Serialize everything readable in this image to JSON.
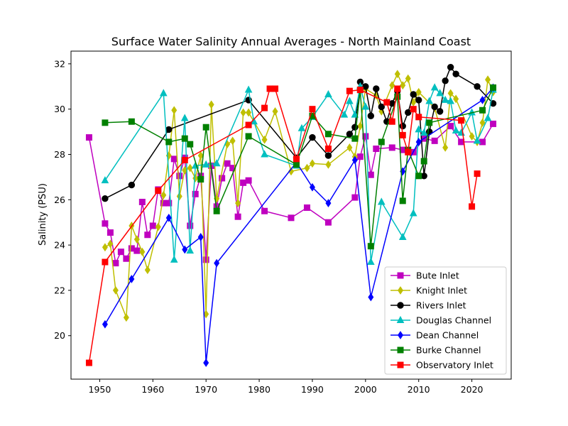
{
  "chart_data": {
    "type": "line",
    "title": "Surface Water Salinity Annual Averages - North Mainland Coast",
    "xlabel": "",
    "ylabel": "Salinity (PSU)",
    "xlim": [
      1944.6,
      2027.4
    ],
    "ylim": [
      18.08,
      32.56
    ],
    "xticks": [
      1950,
      1960,
      1970,
      1980,
      1990,
      2000,
      2010,
      2020
    ],
    "yticks": [
      20,
      22,
      24,
      26,
      28,
      30,
      32
    ],
    "grid": false,
    "legend_position": "lower right",
    "series": [
      {
        "name": "Bute Inlet",
        "color": "#bf00bf",
        "marker": "square",
        "x": [
          1948,
          1951,
          1952,
          1953,
          1954,
          1955,
          1956,
          1957,
          1958,
          1959,
          1960,
          1961,
          1962,
          1963,
          1964,
          1965,
          1966,
          1967,
          1968,
          1969,
          1970,
          1971,
          1972,
          1973,
          1974,
          1975,
          1976,
          1977,
          1978,
          1981,
          1986,
          1989,
          1993,
          1998,
          1999,
          2000,
          2001,
          2002,
          2005,
          2007,
          2009,
          2011,
          2013,
          2016,
          2018,
          2022,
          2024
        ],
        "y": [
          28.75,
          24.95,
          24.55,
          23.2,
          23.7,
          23.4,
          23.85,
          23.75,
          25.9,
          24.45,
          24.85,
          26.45,
          25.85,
          25.85,
          27.8,
          27.05,
          27.85,
          24.85,
          26.25,
          27.05,
          23.35,
          27.5,
          25.7,
          26.95,
          27.6,
          27.4,
          25.25,
          26.75,
          26.85,
          25.5,
          25.2,
          25.65,
          25.0,
          26.1,
          27.9,
          28.8,
          27.1,
          28.25,
          28.3,
          28.2,
          28.1,
          28.7,
          28.6,
          29.25,
          28.55,
          28.55,
          29.35
        ]
      },
      {
        "name": "Knight Inlet",
        "color": "#bfbf00",
        "marker": "diamond",
        "x": [
          1951,
          1952,
          1953,
          1955,
          1956,
          1957,
          1958,
          1959,
          1961,
          1962,
          1963,
          1964,
          1965,
          1966,
          1967,
          1968,
          1969,
          1970,
          1971,
          1972,
          1974,
          1975,
          1976,
          1977,
          1978,
          1981,
          1983,
          1986,
          1989,
          1990,
          1993,
          1997,
          1998,
          1999,
          2000,
          2002,
          2003,
          2005,
          2006,
          2007,
          2008,
          2009,
          2010,
          2013,
          2015,
          2016,
          2017,
          2020,
          2021,
          2022,
          2023,
          2024
        ],
        "y": [
          23.9,
          24.05,
          22.0,
          20.8,
          24.85,
          24.25,
          23.7,
          22.9,
          24.8,
          26.2,
          27.95,
          29.95,
          26.15,
          27.3,
          27.4,
          26.95,
          27.95,
          20.95,
          30.2,
          26.05,
          28.45,
          28.6,
          25.85,
          29.85,
          29.85,
          28.65,
          29.9,
          27.25,
          27.4,
          27.6,
          27.55,
          28.3,
          27.9,
          29.25,
          30.9,
          30.6,
          29.9,
          31.05,
          31.55,
          31.05,
          31.35,
          30.3,
          30.75,
          30.05,
          28.3,
          30.7,
          30.45,
          28.8,
          28.55,
          29.4,
          31.3,
          30.75
        ]
      },
      {
        "name": "Rivers Inlet",
        "color": "#000000",
        "marker": "circle",
        "x": [
          1951,
          1956,
          1963,
          1978,
          1987,
          1990,
          1993,
          1997,
          1998,
          1999,
          2000,
          2001,
          2002,
          2003,
          2004,
          2005,
          2006,
          2007,
          2008,
          2009,
          2010,
          2011,
          2012,
          2013,
          2014,
          2015,
          2016,
          2017,
          2021,
          2024
        ],
        "y": [
          26.05,
          26.65,
          29.1,
          30.4,
          27.85,
          28.75,
          27.95,
          28.9,
          29.2,
          31.2,
          31.0,
          29.7,
          30.9,
          30.1,
          29.45,
          30.25,
          30.8,
          29.25,
          29.85,
          30.65,
          30.4,
          27.05,
          29.0,
          30.1,
          29.9,
          31.25,
          31.85,
          31.55,
          31.0,
          30.25
        ]
      },
      {
        "name": "Douglas Channel",
        "color": "#00bfbf",
        "marker": "triangle",
        "x": [
          1951,
          1962,
          1964,
          1966,
          1967,
          1968,
          1970,
          1972,
          1978,
          1979,
          1981,
          1987,
          1988,
          1990,
          1993,
          1996,
          1997,
          1998,
          1999,
          2000,
          2001,
          2003,
          2007,
          2009,
          2010,
          2011,
          2012,
          2013,
          2014,
          2015,
          2016,
          2017,
          2018,
          2020,
          2021,
          2023,
          2024
        ],
        "y": [
          26.85,
          30.7,
          23.35,
          29.6,
          23.75,
          27.5,
          27.55,
          27.6,
          30.85,
          29.45,
          28.0,
          27.5,
          29.15,
          29.65,
          30.65,
          29.75,
          30.35,
          29.75,
          31.0,
          30.1,
          23.25,
          25.9,
          24.35,
          25.4,
          29.1,
          28.95,
          30.35,
          30.95,
          30.7,
          30.4,
          30.35,
          29.05,
          28.95,
          29.85,
          28.6,
          29.6,
          30.85
        ]
      },
      {
        "name": "Dean Channel",
        "color": "#0000ff",
        "marker": "diamond",
        "x": [
          1951,
          1956,
          1963,
          1966,
          1969,
          1970,
          1972,
          1987,
          1990,
          1993,
          1998,
          2001,
          2007,
          2010,
          2022,
          2024
        ],
        "y": [
          20.5,
          22.5,
          25.2,
          23.8,
          24.35,
          18.8,
          23.2,
          27.65,
          26.55,
          25.85,
          27.75,
          21.7,
          27.25,
          28.55,
          30.4,
          30.95
        ]
      },
      {
        "name": "Burke Channel",
        "color": "#008000",
        "marker": "square",
        "x": [
          1951,
          1956,
          1963,
          1966,
          1967,
          1969,
          1970,
          1972,
          1978,
          1987,
          1990,
          1993,
          1998,
          1999,
          2001,
          2003,
          2006,
          2007,
          2008,
          2010,
          2011,
          2012,
          2022,
          2024
        ],
        "y": [
          29.4,
          29.45,
          28.55,
          28.7,
          28.45,
          26.9,
          29.2,
          25.5,
          28.8,
          27.55,
          29.7,
          28.9,
          28.7,
          30.85,
          23.95,
          28.55,
          30.55,
          25.95,
          28.2,
          27.05,
          27.7,
          29.4,
          29.95,
          30.95
        ]
      },
      {
        "name": "Observatory Inlet",
        "color": "#ff0000",
        "marker": "square",
        "x": [
          1948,
          1951,
          1961,
          1966,
          1978,
          1981,
          1982,
          1983,
          1987,
          1990,
          1993,
          1997,
          1999,
          2004,
          2005,
          2006,
          2007,
          2008,
          2009,
          2010,
          2018,
          2020,
          2021
        ],
        "y": [
          18.8,
          23.25,
          26.4,
          27.75,
          29.3,
          30.05,
          30.9,
          30.9,
          27.8,
          30.0,
          28.25,
          30.8,
          30.85,
          30.3,
          29.45,
          30.9,
          28.85,
          28.1,
          30.0,
          29.65,
          29.5,
          25.7,
          27.15
        ]
      }
    ]
  }
}
